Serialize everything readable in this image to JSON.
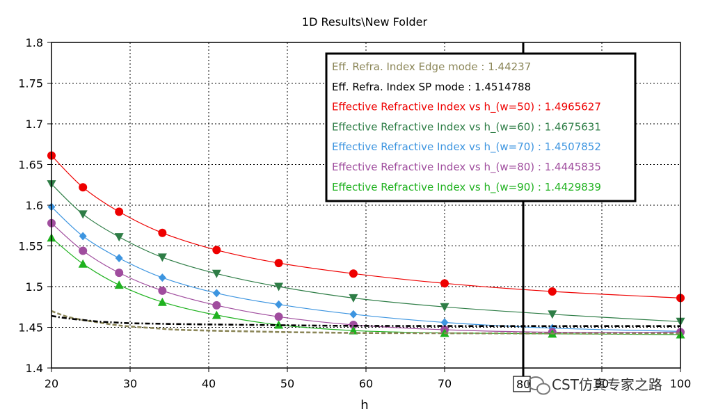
{
  "chart_data": {
    "type": "line",
    "title": "1D Results\\New Folder",
    "xlabel": "h",
    "ylabel": "",
    "xlim": [
      20,
      100
    ],
    "ylim": [
      1.4,
      1.8
    ],
    "xticks": [
      20,
      30,
      40,
      50,
      60,
      70,
      80,
      90,
      100
    ],
    "xtick_labels": [
      "20",
      "30",
      "40",
      "50",
      "60",
      "70",
      "80",
      "90",
      "100"
    ],
    "yticks": [
      1.4,
      1.45,
      1.5,
      1.55,
      1.6,
      1.65,
      1.7,
      1.75,
      1.8
    ],
    "ytick_labels": [
      "1.4",
      "1.45",
      "1.5",
      "1.55",
      "1.6",
      "1.65",
      "1.7",
      "1.75",
      "1.8"
    ],
    "grid": true,
    "legend_position": "top-right",
    "marker_x": [
      20,
      24,
      28.6,
      34.1,
      41,
      48.9,
      58.4,
      70,
      83.7,
      100
    ],
    "cursor_x": 80,
    "cursor_label": "80",
    "series": [
      {
        "name": "Eff. Refra. Index Edge mode",
        "readout": "1.44237",
        "color": "#8b8658",
        "style": "dashed",
        "marker": "none",
        "x": [
          20,
          22,
          24,
          26,
          28,
          30,
          33,
          36,
          40,
          45,
          50,
          55,
          60,
          70,
          80,
          90,
          100
        ],
        "values": [
          1.47,
          1.463,
          1.459,
          1.456,
          1.453,
          1.451,
          1.449,
          1.447,
          1.446,
          1.445,
          1.444,
          1.4435,
          1.443,
          1.4427,
          1.4425,
          1.4424,
          1.4424
        ]
      },
      {
        "name": "Eff. Refra. Index SP mode",
        "readout": "1.4514788",
        "color": "#000000",
        "style": "dashdot",
        "marker": "none",
        "x": [
          20,
          22,
          24,
          26,
          28,
          30,
          33,
          36,
          40,
          45,
          50,
          55,
          60,
          70,
          80,
          90,
          100
        ],
        "values": [
          1.464,
          1.461,
          1.459,
          1.457,
          1.456,
          1.455,
          1.4545,
          1.454,
          1.4535,
          1.453,
          1.4525,
          1.452,
          1.4518,
          1.4516,
          1.4515,
          1.4515,
          1.4515
        ]
      },
      {
        "name": "Effective Refractive Index vs h_(w=50)",
        "readout": "1.4965627",
        "color": "#ee0000",
        "style": "solid",
        "marker": "circle",
        "values": [
          1.661,
          1.622,
          1.592,
          1.566,
          1.545,
          1.529,
          1.516,
          1.504,
          1.494,
          1.486
        ]
      },
      {
        "name": "Effective Refractive Index vs h_(w=60)",
        "readout": "1.4675631",
        "color": "#2e7d46",
        "style": "solid",
        "marker": "triangle-down",
        "values": [
          1.626,
          1.589,
          1.561,
          1.536,
          1.516,
          1.5,
          1.486,
          1.475,
          1.466,
          1.457
        ]
      },
      {
        "name": "Effective Refractive Index vs h_(w=70)",
        "readout": "1.4507852",
        "color": "#3d95e0",
        "style": "solid",
        "marker": "diamond",
        "values": [
          1.598,
          1.562,
          1.535,
          1.511,
          1.492,
          1.478,
          1.466,
          1.456,
          1.449,
          1.445
        ]
      },
      {
        "name": "Effective Refractive Index vs h_(w=80)",
        "readout": "1.4445835",
        "color": "#a04d9e",
        "style": "solid",
        "marker": "circle",
        "values": [
          1.578,
          1.544,
          1.517,
          1.495,
          1.477,
          1.463,
          1.453,
          1.447,
          1.444,
          1.444
        ]
      },
      {
        "name": "Effective Refractive Index vs h_(w=90)",
        "readout": "1.4429839",
        "color": "#1fb21f",
        "style": "solid",
        "marker": "triangle-up",
        "values": [
          1.56,
          1.528,
          1.502,
          1.481,
          1.465,
          1.453,
          1.446,
          1.443,
          1.442,
          1.441
        ]
      }
    ]
  },
  "watermark": "CST仿真专家之路"
}
